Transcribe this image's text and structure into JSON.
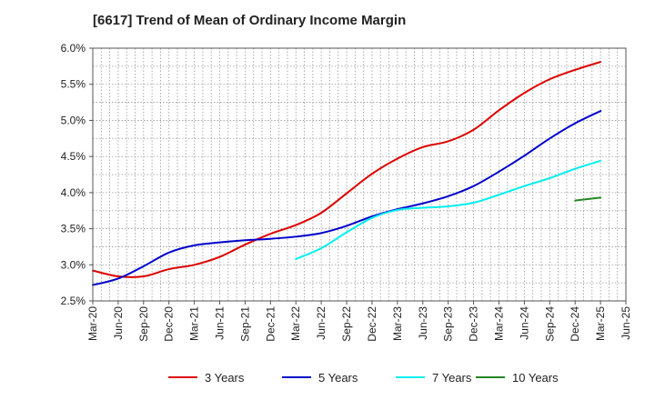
{
  "title": "[6617]  Trend of Mean of Ordinary Income Margin",
  "chart_data": {
    "type": "line",
    "title": "[6617]  Trend of Mean of Ordinary Income Margin",
    "xlabel": "",
    "ylabel": "",
    "x_ticks": [
      "Mar-20",
      "Jun-20",
      "Sep-20",
      "Dec-20",
      "Mar-21",
      "Jun-21",
      "Sep-21",
      "Dec-21",
      "Mar-22",
      "Jun-22",
      "Sep-22",
      "Dec-22",
      "Mar-23",
      "Jun-23",
      "Sep-23",
      "Dec-23",
      "Mar-24",
      "Jun-24",
      "Sep-24",
      "Dec-24",
      "Mar-25",
      "Jun-25"
    ],
    "y_ticks": [
      "2.5%",
      "3.0%",
      "3.5%",
      "4.0%",
      "4.5%",
      "5.0%",
      "5.5%",
      "6.0%"
    ],
    "ylim": [
      2.5,
      6.0
    ],
    "y_unit": "%",
    "grid": true,
    "legend_position": "bottom",
    "series": [
      {
        "name": "3 Years",
        "color": "#dd0000",
        "x": [
          "Mar-20",
          "Jun-20",
          "Sep-20",
          "Dec-20",
          "Mar-21",
          "Jun-21",
          "Sep-21",
          "Dec-21",
          "Mar-22",
          "Jun-22",
          "Sep-22",
          "Dec-22",
          "Mar-23",
          "Jun-23",
          "Sep-23",
          "Dec-23",
          "Mar-24",
          "Jun-24",
          "Sep-24",
          "Dec-24",
          "Mar-25"
        ],
        "values": [
          2.92,
          2.84,
          2.84,
          2.94,
          3.0,
          3.11,
          3.28,
          3.43,
          3.55,
          3.72,
          3.99,
          4.26,
          4.47,
          4.63,
          4.71,
          4.87,
          5.14,
          5.38,
          5.57,
          5.7,
          5.81
        ]
      },
      {
        "name": "5 Years",
        "color": "#0000cc",
        "x": [
          "Mar-20",
          "Jun-20",
          "Sep-20",
          "Dec-20",
          "Mar-21",
          "Jun-21",
          "Sep-21",
          "Dec-21",
          "Mar-22",
          "Jun-22",
          "Sep-22",
          "Dec-22",
          "Mar-23",
          "Jun-23",
          "Sep-23",
          "Dec-23",
          "Mar-24",
          "Jun-24",
          "Sep-24",
          "Dec-24",
          "Mar-25"
        ],
        "values": [
          2.72,
          2.81,
          2.98,
          3.17,
          3.27,
          3.31,
          3.34,
          3.36,
          3.39,
          3.44,
          3.54,
          3.67,
          3.77,
          3.85,
          3.95,
          4.09,
          4.29,
          4.51,
          4.75,
          4.96,
          5.13
        ]
      },
      {
        "name": "7 Years",
        "color": "#00eeee",
        "x": [
          "Mar-22",
          "Jun-22",
          "Sep-22",
          "Dec-22",
          "Mar-23",
          "Jun-23",
          "Sep-23",
          "Dec-23",
          "Mar-24",
          "Jun-24",
          "Sep-24",
          "Dec-24",
          "Mar-25"
        ],
        "values": [
          3.08,
          3.23,
          3.45,
          3.65,
          3.76,
          3.79,
          3.81,
          3.86,
          3.97,
          4.09,
          4.2,
          4.33,
          4.44
        ]
      },
      {
        "name": "10 Years",
        "color": "#228822",
        "x": [
          "Dec-24",
          "Mar-25"
        ],
        "values": [
          3.89,
          3.93
        ]
      }
    ]
  }
}
